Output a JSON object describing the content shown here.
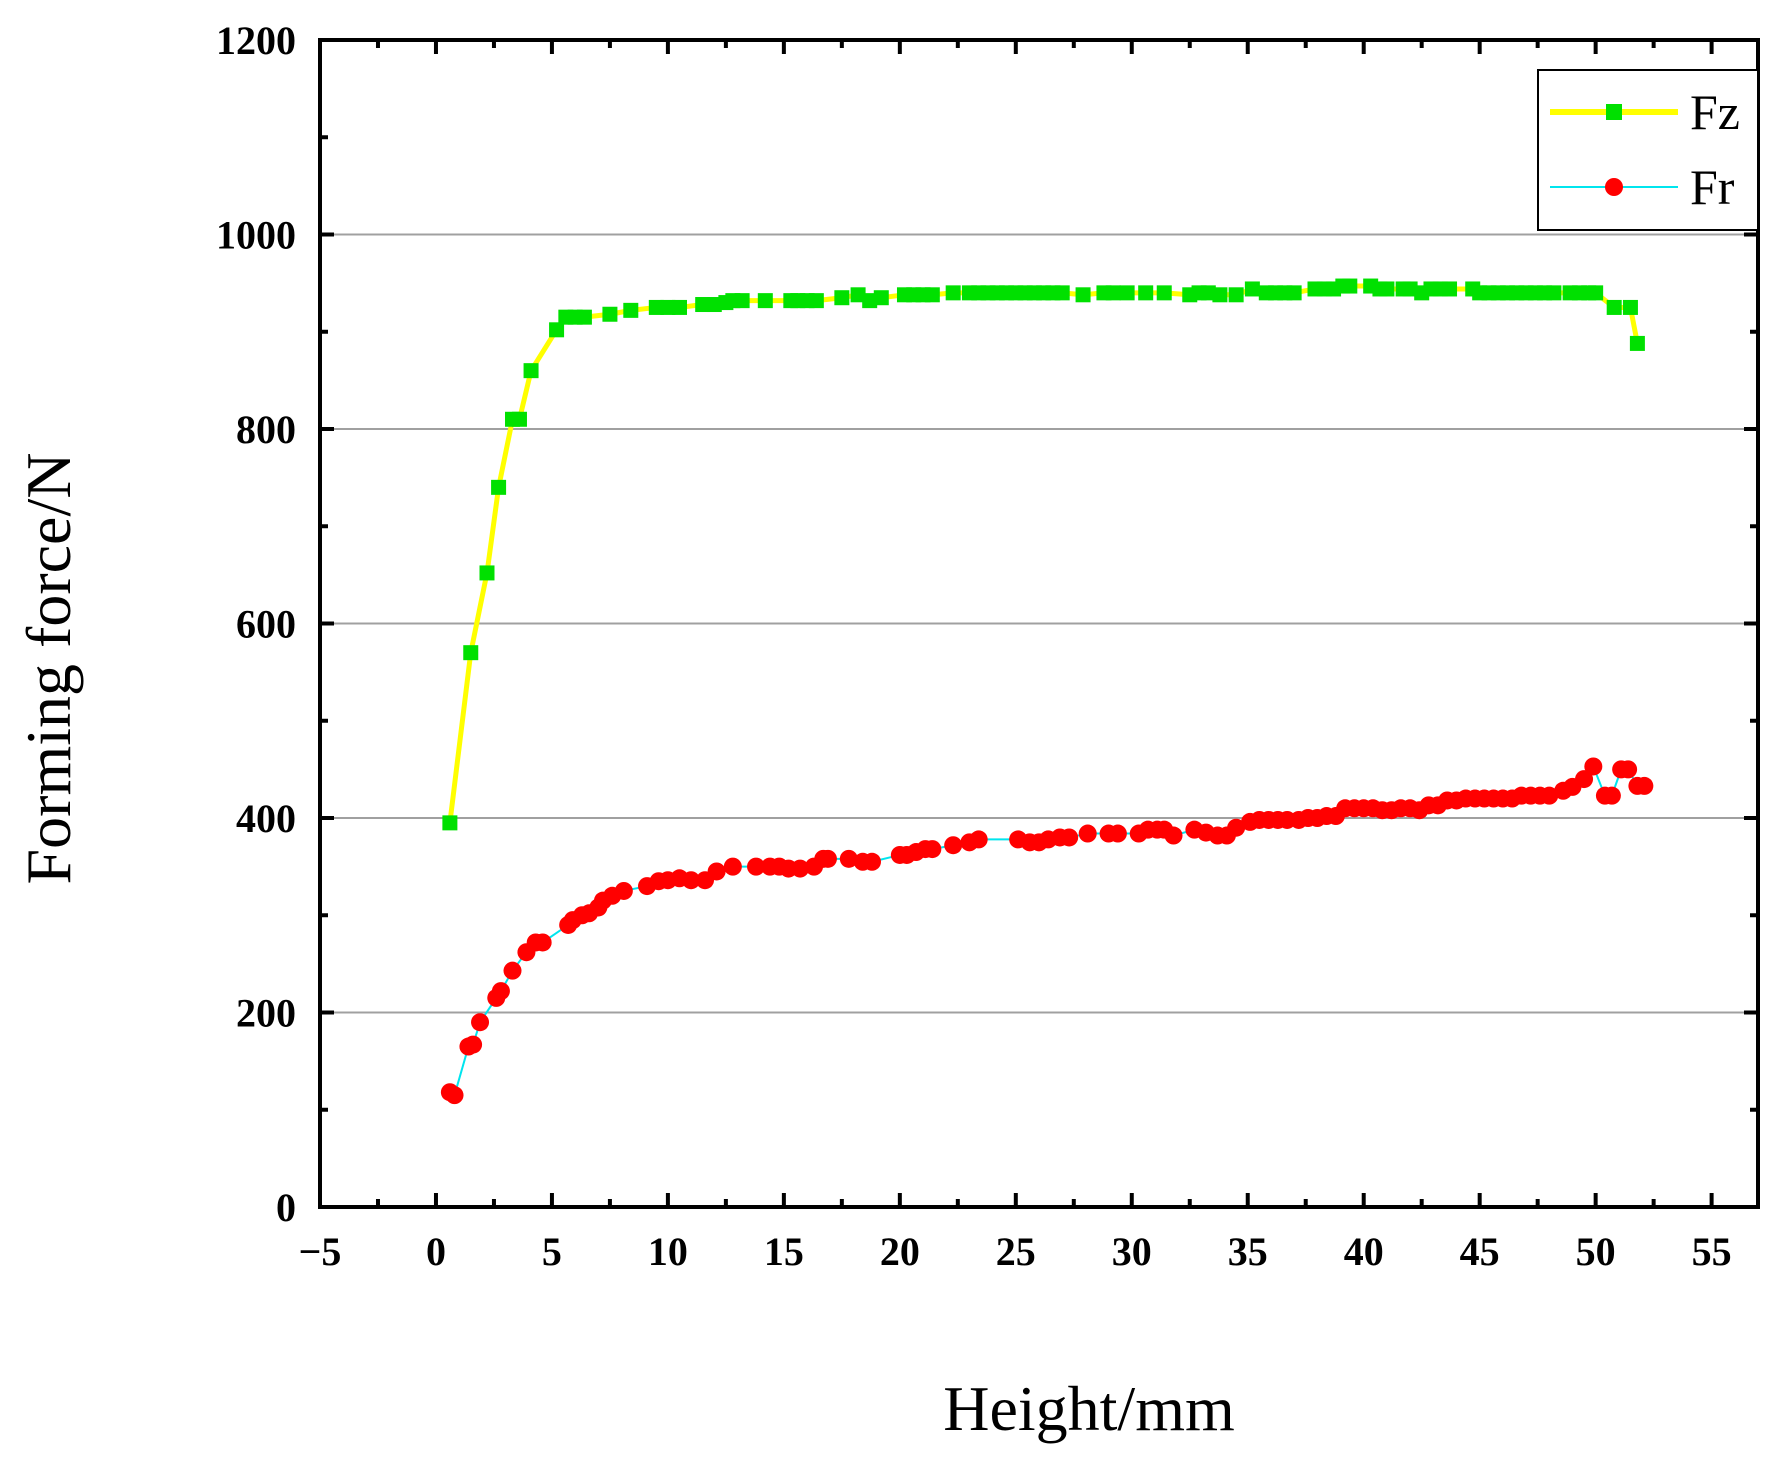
{
  "chart_data": {
    "type": "line",
    "title": "",
    "xlabel": "Height/mm",
    "ylabel": "Forming force/N",
    "xlim": [
      -5,
      57
    ],
    "ylim": [
      0,
      1200
    ],
    "xticks": [
      -5,
      0,
      5,
      10,
      15,
      20,
      25,
      30,
      35,
      40,
      45,
      50,
      55
    ],
    "xtick_labels": [
      "−5",
      "0",
      "5",
      "10",
      "15",
      "20",
      "25",
      "30",
      "35",
      "40",
      "45",
      "50",
      "55"
    ],
    "yticks": [
      0,
      200,
      400,
      600,
      800,
      1000,
      1200
    ],
    "ytick_labels": [
      "0",
      "200",
      "400",
      "600",
      "800",
      "1000",
      "1200"
    ],
    "grid": "horizontal",
    "legend_position": "top-right",
    "series": [
      {
        "name": "Fz",
        "line_color": "#ffff00",
        "marker_color": "#00e000",
        "marker": "square",
        "points": [
          [
            0.6,
            395
          ],
          [
            1.5,
            570
          ],
          [
            2.2,
            652
          ],
          [
            2.7,
            740
          ],
          [
            3.3,
            810
          ],
          [
            3.6,
            810
          ],
          [
            4.1,
            860
          ],
          [
            5.2,
            902
          ],
          [
            5.6,
            915
          ],
          [
            6.0,
            915
          ],
          [
            6.4,
            915
          ],
          [
            7.5,
            918
          ],
          [
            8.4,
            922
          ],
          [
            9.5,
            925
          ],
          [
            10.0,
            925
          ],
          [
            10.5,
            925
          ],
          [
            11.5,
            928
          ],
          [
            12.0,
            928
          ],
          [
            12.5,
            930
          ],
          [
            12.8,
            932
          ],
          [
            13.2,
            932
          ],
          [
            14.2,
            932
          ],
          [
            15.3,
            932
          ],
          [
            15.6,
            932
          ],
          [
            16.0,
            932
          ],
          [
            16.4,
            932
          ],
          [
            17.5,
            935
          ],
          [
            18.2,
            938
          ],
          [
            18.7,
            932
          ],
          [
            19.2,
            935
          ],
          [
            20.2,
            938
          ],
          [
            20.6,
            938
          ],
          [
            21.0,
            938
          ],
          [
            21.4,
            938
          ],
          [
            22.3,
            940
          ],
          [
            23.0,
            940
          ],
          [
            23.4,
            940
          ],
          [
            23.8,
            940
          ],
          [
            24.2,
            940
          ],
          [
            24.6,
            940
          ],
          [
            25.0,
            940
          ],
          [
            25.4,
            940
          ],
          [
            25.8,
            940
          ],
          [
            26.2,
            940
          ],
          [
            26.6,
            940
          ],
          [
            27.0,
            940
          ],
          [
            27.9,
            938
          ],
          [
            28.8,
            940
          ],
          [
            29.2,
            940
          ],
          [
            29.8,
            940
          ],
          [
            30.6,
            940
          ],
          [
            31.4,
            940
          ],
          [
            32.5,
            938
          ],
          [
            32.9,
            940
          ],
          [
            33.3,
            940
          ],
          [
            33.8,
            938
          ],
          [
            34.5,
            938
          ],
          [
            35.2,
            944
          ],
          [
            35.8,
            940
          ],
          [
            36.2,
            940
          ],
          [
            36.6,
            940
          ],
          [
            37.0,
            940
          ],
          [
            37.9,
            944
          ],
          [
            38.3,
            944
          ],
          [
            38.7,
            944
          ],
          [
            39.1,
            947
          ],
          [
            39.4,
            947
          ],
          [
            40.3,
            947
          ],
          [
            40.7,
            944
          ],
          [
            41.0,
            944
          ],
          [
            41.7,
            944
          ],
          [
            42.0,
            944
          ],
          [
            42.5,
            940
          ],
          [
            42.9,
            944
          ],
          [
            43.3,
            944
          ],
          [
            43.7,
            944
          ],
          [
            44.7,
            944
          ],
          [
            45.0,
            940
          ],
          [
            45.4,
            940
          ],
          [
            45.8,
            940
          ],
          [
            46.2,
            940
          ],
          [
            46.6,
            940
          ],
          [
            47.0,
            940
          ],
          [
            47.4,
            940
          ],
          [
            47.8,
            940
          ],
          [
            48.2,
            940
          ],
          [
            48.9,
            940
          ],
          [
            49.3,
            940
          ],
          [
            49.7,
            940
          ],
          [
            50.0,
            940
          ],
          [
            50.8,
            925
          ],
          [
            51.5,
            925
          ],
          [
            51.8,
            888
          ]
        ]
      },
      {
        "name": "Fr",
        "line_color": "#00e5ee",
        "marker_color": "#ff0000",
        "marker": "circle",
        "points": [
          [
            0.6,
            118
          ],
          [
            0.8,
            115
          ],
          [
            1.4,
            165
          ],
          [
            1.6,
            167
          ],
          [
            1.9,
            190
          ],
          [
            2.6,
            215
          ],
          [
            2.8,
            222
          ],
          [
            3.3,
            243
          ],
          [
            3.9,
            262
          ],
          [
            4.3,
            272
          ],
          [
            4.6,
            272
          ],
          [
            5.7,
            290
          ],
          [
            5.9,
            295
          ],
          [
            6.3,
            300
          ],
          [
            6.6,
            302
          ],
          [
            7.0,
            308
          ],
          [
            7.2,
            315
          ],
          [
            7.6,
            320
          ],
          [
            8.1,
            325
          ],
          [
            9.1,
            330
          ],
          [
            9.6,
            335
          ],
          [
            10.0,
            336
          ],
          [
            10.5,
            338
          ],
          [
            11.0,
            336
          ],
          [
            11.6,
            336
          ],
          [
            12.1,
            345
          ],
          [
            12.8,
            350
          ],
          [
            13.8,
            350
          ],
          [
            14.4,
            350
          ],
          [
            14.8,
            350
          ],
          [
            15.2,
            348
          ],
          [
            15.7,
            348
          ],
          [
            16.3,
            350
          ],
          [
            16.7,
            358
          ],
          [
            16.9,
            358
          ],
          [
            17.8,
            358
          ],
          [
            18.4,
            355
          ],
          [
            18.8,
            355
          ],
          [
            20.0,
            362
          ],
          [
            20.3,
            362
          ],
          [
            20.7,
            365
          ],
          [
            21.1,
            368
          ],
          [
            21.4,
            368
          ],
          [
            22.3,
            372
          ],
          [
            23.0,
            375
          ],
          [
            23.4,
            378
          ],
          [
            25.1,
            378
          ],
          [
            25.6,
            375
          ],
          [
            26.0,
            375
          ],
          [
            26.4,
            378
          ],
          [
            26.9,
            380
          ],
          [
            27.3,
            380
          ],
          [
            28.1,
            384
          ],
          [
            29.0,
            384
          ],
          [
            29.4,
            384
          ],
          [
            30.3,
            384
          ],
          [
            30.7,
            388
          ],
          [
            31.1,
            388
          ],
          [
            31.4,
            388
          ],
          [
            31.8,
            382
          ],
          [
            32.7,
            388
          ],
          [
            33.2,
            385
          ],
          [
            33.7,
            382
          ],
          [
            34.1,
            382
          ],
          [
            34.5,
            390
          ],
          [
            35.1,
            396
          ],
          [
            35.5,
            398
          ],
          [
            35.9,
            398
          ],
          [
            36.3,
            398
          ],
          [
            36.7,
            398
          ],
          [
            37.2,
            398
          ],
          [
            37.6,
            400
          ],
          [
            38.0,
            400
          ],
          [
            38.4,
            402
          ],
          [
            38.8,
            402
          ],
          [
            39.2,
            410
          ],
          [
            39.6,
            410
          ],
          [
            40.0,
            410
          ],
          [
            40.4,
            410
          ],
          [
            40.8,
            408
          ],
          [
            41.2,
            408
          ],
          [
            41.6,
            410
          ],
          [
            42.0,
            410
          ],
          [
            42.4,
            408
          ],
          [
            42.8,
            413
          ],
          [
            43.2,
            413
          ],
          [
            43.6,
            418
          ],
          [
            44.0,
            418
          ],
          [
            44.4,
            420
          ],
          [
            44.8,
            420
          ],
          [
            45.2,
            420
          ],
          [
            45.6,
            420
          ],
          [
            46.0,
            420
          ],
          [
            46.4,
            420
          ],
          [
            46.8,
            423
          ],
          [
            47.2,
            423
          ],
          [
            47.6,
            423
          ],
          [
            48.0,
            423
          ],
          [
            48.6,
            428
          ],
          [
            49.0,
            432
          ],
          [
            49.5,
            440
          ],
          [
            49.9,
            453
          ],
          [
            50.4,
            423
          ],
          [
            50.7,
            423
          ],
          [
            51.1,
            450
          ],
          [
            51.4,
            450
          ],
          [
            51.8,
            433
          ],
          [
            52.1,
            433
          ]
        ]
      }
    ]
  }
}
